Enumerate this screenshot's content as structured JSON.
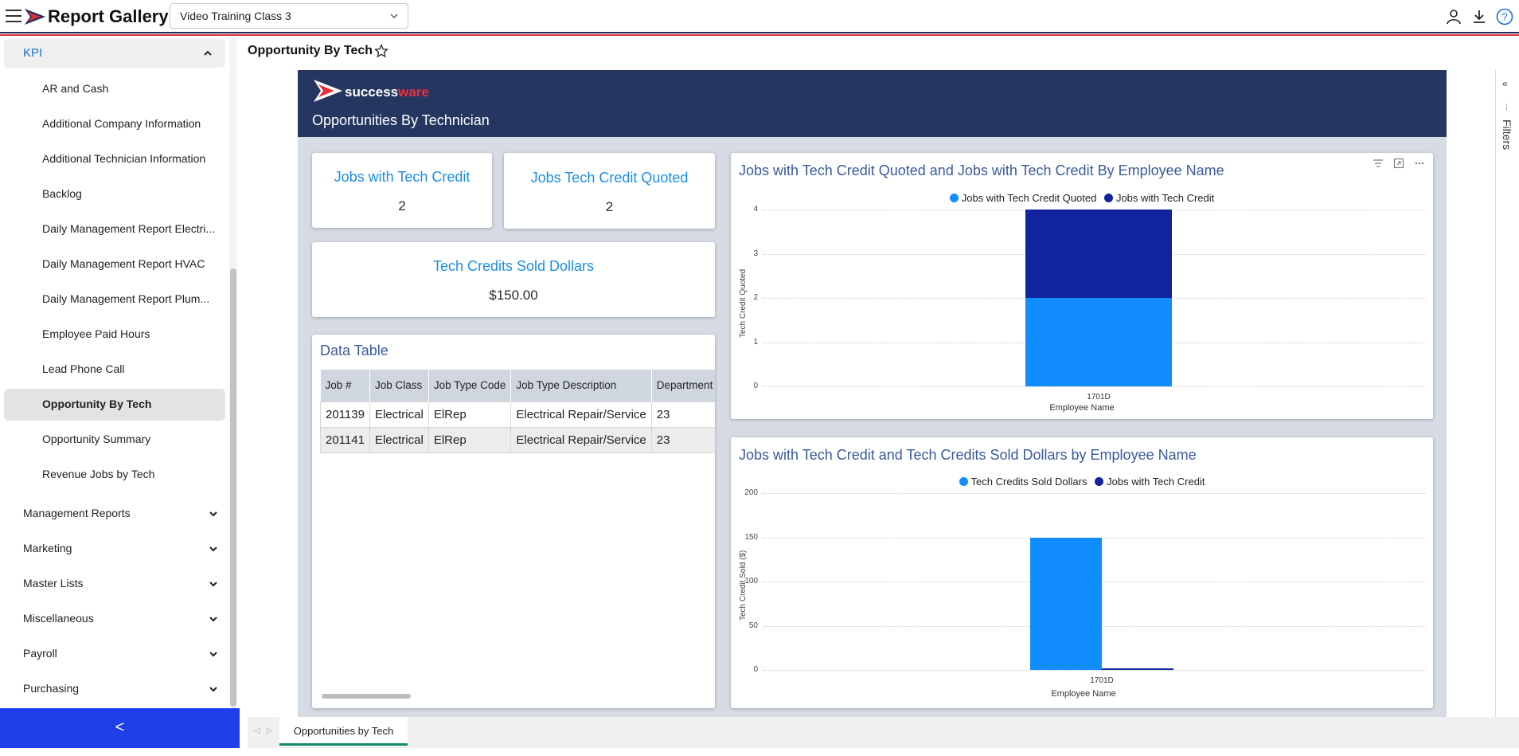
{
  "header": {
    "title": "Report Gallery",
    "report_select": "Video Training Class 3",
    "icons": [
      "user-icon",
      "download-icon",
      "help-icon"
    ]
  },
  "sidebar": {
    "kpi_label": "KPI",
    "items": [
      {
        "label": "AR and Cash"
      },
      {
        "label": "Additional Company Information"
      },
      {
        "label": "Additional Technician Information"
      },
      {
        "label": "Backlog"
      },
      {
        "label": "Daily Management Report Electri..."
      },
      {
        "label": "Daily Management Report HVAC"
      },
      {
        "label": "Daily Management Report Plum..."
      },
      {
        "label": "Employee Paid Hours"
      },
      {
        "label": "Lead Phone Call"
      },
      {
        "label": "Opportunity By Tech"
      },
      {
        "label": "Opportunity Summary"
      },
      {
        "label": "Revenue Jobs by Tech"
      }
    ],
    "active_item": "Opportunity By Tech",
    "sections": [
      {
        "label": "Management Reports"
      },
      {
        "label": "Marketing"
      },
      {
        "label": "Master Lists"
      },
      {
        "label": "Miscellaneous"
      },
      {
        "label": "Payroll"
      },
      {
        "label": "Purchasing"
      }
    ],
    "collapse_glyph": "<"
  },
  "page": {
    "title": "Opportunity By Tech"
  },
  "report": {
    "brand_a": "success",
    "brand_b": "ware",
    "title": "Opportunities By Technician",
    "kpis": {
      "jobs_with_tech_credit": {
        "label": "Jobs with Tech Credit",
        "value": "2"
      },
      "jobs_tech_credit_quoted": {
        "label": "Jobs Tech Credit Quoted",
        "value": "2"
      },
      "tech_credits_sold_dollars": {
        "label": "Tech Credits Sold Dollars",
        "value": "$150.00"
      }
    },
    "data_table": {
      "title": "Data Table",
      "columns": [
        "Job #",
        "Job Class",
        "Job Type Code",
        "Job Type Description",
        "Department"
      ],
      "rows": [
        [
          "201139",
          "Electrical",
          "ElRep",
          "Electrical Repair/Service",
          "23"
        ],
        [
          "201141",
          "Electrical",
          "ElRep",
          "Electrical Repair/Service",
          "23"
        ]
      ]
    }
  },
  "chart_data": [
    {
      "type": "bar",
      "stacked": true,
      "title": "Jobs with Tech Credit Quoted and Jobs with Tech Credit By Employee Name",
      "categories": [
        "1701D"
      ],
      "xlabel": "Employee Name",
      "ylabel": "Tech Credit Quoted",
      "ylim": [
        0,
        4
      ],
      "yticks": [
        0,
        1,
        2,
        3,
        4
      ],
      "grid": true,
      "legend_position": "top-center",
      "series": [
        {
          "name": "Jobs with Tech Credit Quoted",
          "values": [
            2
          ],
          "color": "#118dff"
        },
        {
          "name": "Jobs with Tech Credit",
          "values": [
            2
          ],
          "color": "#12239e"
        }
      ]
    },
    {
      "type": "bar",
      "stacked": false,
      "title": "Jobs with Tech Credit and Tech Credits Sold Dollars by Employee Name",
      "categories": [
        "1701D"
      ],
      "xlabel": "Employee Name",
      "ylabel": "Tech Credit Sold ($)",
      "ylim": [
        0,
        200
      ],
      "yticks": [
        0,
        50,
        100,
        150,
        200
      ],
      "grid": true,
      "legend_position": "top-center",
      "series": [
        {
          "name": "Tech Credits Sold Dollars",
          "values": [
            150
          ],
          "color": "#118dff"
        },
        {
          "name": "Jobs with Tech Credit",
          "values": [
            2
          ],
          "color": "#12239e"
        }
      ]
    }
  ],
  "filters": {
    "label": "Filters"
  },
  "tabs": [
    {
      "label": "Opportunities by Tech"
    }
  ]
}
